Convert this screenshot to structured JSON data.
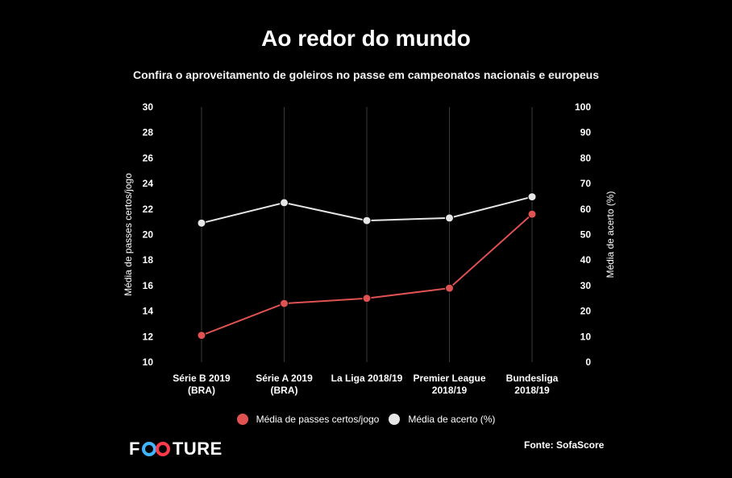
{
  "title": "Ao redor do mundo",
  "subtitle": "Confira o aproveitamento de goleiros no passe em campeonatos nacionais e europeus",
  "source": "Fonte: SofaScore",
  "logo": {
    "prefix": "F",
    "suffix": "TURE",
    "full_text": "FOOTURE",
    "icon": "infinity-icon",
    "color_left": "#3fb5ff",
    "color_right": "#ff3b4a"
  },
  "colors": {
    "background": "#000000",
    "passes": "#e05252",
    "accuracy": "#e6e6e6",
    "gridline": "#3a3a3a"
  },
  "chart_data": {
    "type": "line",
    "categories": [
      [
        "Série B 2019",
        "(BRA)"
      ],
      [
        "Série A 2019",
        "(BRA)"
      ],
      [
        "La Liga 2018/19"
      ],
      [
        "Premier League",
        "2018/19"
      ],
      [
        "Bundesliga",
        "2018/19"
      ]
    ],
    "y_left": {
      "label": "Média de passes certos/jogo",
      "min": 10,
      "max": 30,
      "ticks": [
        10,
        12,
        14,
        16,
        18,
        20,
        22,
        24,
        26,
        28,
        30
      ]
    },
    "y_right": {
      "label": "Média de acerto (%)",
      "min": 0,
      "max": 100,
      "ticks": [
        0,
        10,
        20,
        30,
        40,
        50,
        60,
        70,
        80,
        90,
        100
      ]
    },
    "series": [
      {
        "name": "Média de passes certos/jogo",
        "axis": "left",
        "color": "#e05252",
        "values": [
          12.1,
          14.6,
          15.0,
          15.8,
          21.6
        ]
      },
      {
        "name": "Média de acerto (%)",
        "axis": "right",
        "color": "#e6e6e6",
        "values": [
          54.5,
          62.5,
          55.5,
          56.5,
          64.8
        ]
      }
    ],
    "grid": "vertical",
    "legend": "bottom"
  }
}
